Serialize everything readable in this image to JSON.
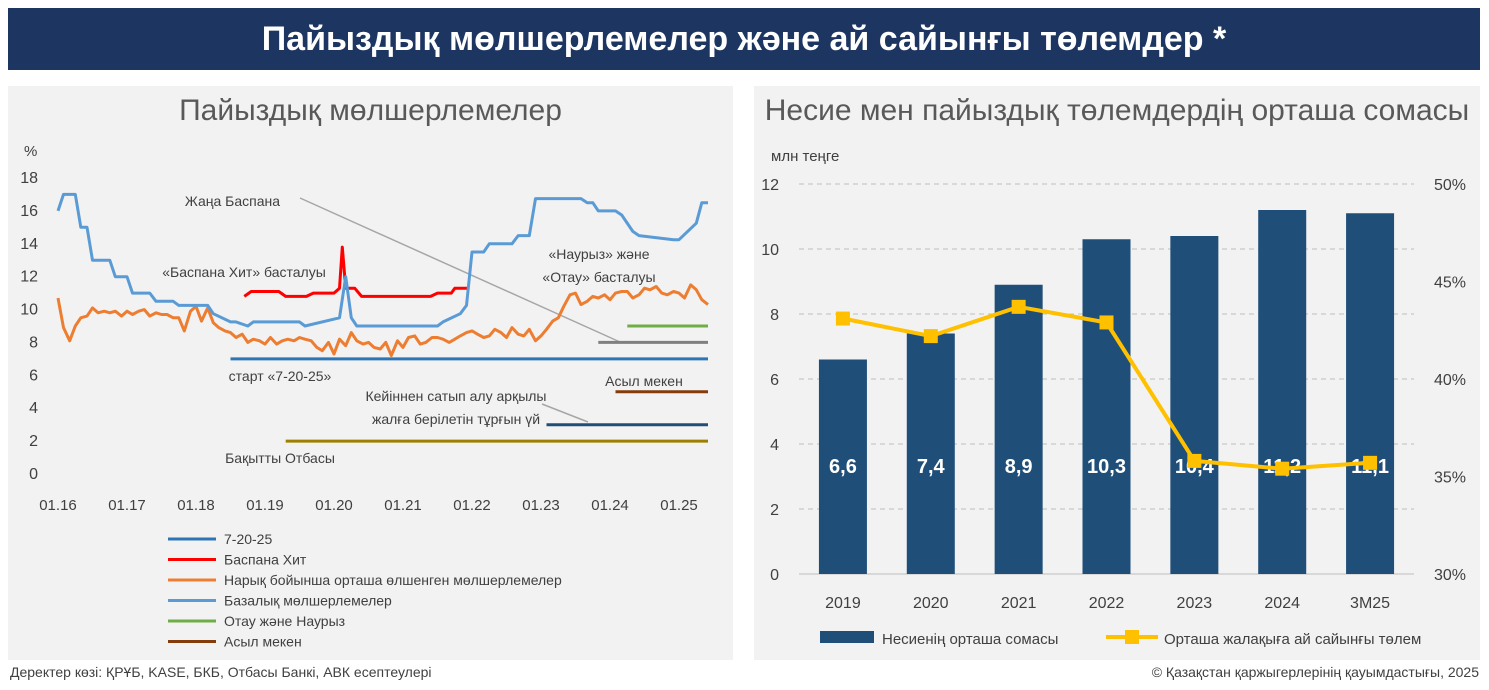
{
  "header": {
    "title": "Пайыздық мөлшерлемелер және ай сайынғы төлемдер *"
  },
  "left_panel": {
    "title": "Пайыздық мөлшерлемелер"
  },
  "right_panel": {
    "title": "Несие мен пайыздық төлемдердің орташа сомасы"
  },
  "footer": {
    "source": "Деректер көзі: ҚРҰБ, KASE, БКБ, Отбасы Банкі, АВК есептеулері",
    "copyright": "© Қазақстан қаржыгерлерінің қауымдастығы, 2025"
  },
  "chart_data": [
    {
      "type": "line",
      "title": "Пайыздық мөлшерлемелер",
      "ylabel": "%",
      "ylim": [
        0,
        18
      ],
      "yticks": [
        0,
        2,
        4,
        6,
        8,
        10,
        12,
        14,
        16,
        18
      ],
      "xlim": [
        2016.0,
        2025.42
      ],
      "xticks": [
        "01.16",
        "01.17",
        "01.18",
        "01.19",
        "01.20",
        "01.21",
        "01.22",
        "01.23",
        "01.24",
        "01.25"
      ],
      "grid": false,
      "legend_position": "bottom",
      "series": [
        {
          "name": "7-20-25",
          "color": "#2e75b6",
          "x": [
            2018.5,
            2025.42
          ],
          "y": [
            7,
            7
          ]
        },
        {
          "name": "Баспана Хит",
          "color": "#ff0000",
          "x": [
            2018.7,
            2018.8,
            2019.2,
            2019.3,
            2019.6,
            2019.7,
            2019.9,
            2020.0,
            2020.08,
            2020.12,
            2020.17,
            2020.3,
            2020.4,
            2020.6,
            2020.8,
            2021.0,
            2021.4,
            2021.5,
            2021.7,
            2021.75,
            2021.95
          ],
          "y": [
            10.8,
            11.1,
            11.1,
            10.8,
            10.8,
            11.0,
            11.0,
            11.0,
            11.3,
            13.8,
            11.3,
            11.3,
            10.8,
            10.8,
            10.8,
            10.8,
            10.8,
            11.0,
            11.0,
            11.3,
            11.3
          ]
        },
        {
          "name": "Нарық бойынша орташа өлшенген мөлшерлемелер",
          "color": "#ed7d31",
          "x": [
            2016.0,
            2016.08,
            2016.17,
            2016.25,
            2016.33,
            2016.42,
            2016.5,
            2016.58,
            2016.67,
            2016.75,
            2016.83,
            2016.92,
            2017.0,
            2017.08,
            2017.17,
            2017.25,
            2017.33,
            2017.42,
            2017.5,
            2017.58,
            2017.67,
            2017.75,
            2017.83,
            2017.92,
            2018.0,
            2018.08,
            2018.17,
            2018.25,
            2018.33,
            2018.42,
            2018.5,
            2018.58,
            2018.67,
            2018.75,
            2018.83,
            2018.92,
            2019.0,
            2019.08,
            2019.17,
            2019.25,
            2019.33,
            2019.42,
            2019.5,
            2019.58,
            2019.67,
            2019.75,
            2019.83,
            2019.92,
            2020.0,
            2020.08,
            2020.17,
            2020.25,
            2020.33,
            2020.42,
            2020.5,
            2020.58,
            2020.67,
            2020.75,
            2020.83,
            2020.92,
            2021.0,
            2021.08,
            2021.17,
            2021.25,
            2021.33,
            2021.42,
            2021.5,
            2021.58,
            2021.67,
            2021.75,
            2021.83,
            2021.92,
            2022.0,
            2022.08,
            2022.17,
            2022.25,
            2022.33,
            2022.42,
            2022.5,
            2022.58,
            2022.67,
            2022.75,
            2022.83,
            2022.92,
            2023.0,
            2023.08,
            2023.17,
            2023.25,
            2023.33,
            2023.42,
            2023.5,
            2023.58,
            2023.67,
            2023.75,
            2023.83,
            2023.92,
            2024.0,
            2024.08,
            2024.17,
            2024.25,
            2024.33,
            2024.42,
            2024.5,
            2024.58,
            2024.67,
            2024.75,
            2024.83,
            2024.92,
            2025.0,
            2025.08,
            2025.17,
            2025.25,
            2025.33,
            2025.42
          ],
          "y": [
            10.7,
            8.9,
            8.1,
            9.0,
            9.5,
            9.6,
            10.1,
            9.8,
            9.9,
            9.8,
            9.9,
            9.6,
            9.9,
            9.7,
            9.9,
            10.0,
            9.6,
            9.8,
            9.7,
            9.7,
            9.5,
            9.5,
            8.7,
            9.9,
            10.2,
            9.3,
            10.1,
            9.2,
            8.9,
            8.7,
            8.6,
            8.3,
            8.5,
            8.0,
            8.2,
            8.1,
            7.9,
            8.3,
            7.9,
            8.1,
            8.2,
            8.1,
            8.3,
            8.2,
            8.1,
            7.7,
            7.5,
            8.0,
            7.3,
            8.2,
            7.8,
            8.6,
            8.1,
            7.9,
            8.0,
            7.7,
            7.6,
            8.0,
            7.2,
            8.1,
            7.7,
            8.3,
            8.4,
            7.9,
            8.0,
            8.3,
            8.3,
            8.2,
            8.0,
            8.2,
            8.4,
            8.6,
            8.7,
            8.5,
            8.3,
            8.4,
            8.8,
            8.6,
            8.3,
            8.9,
            8.5,
            8.4,
            8.8,
            8.1,
            8.4,
            8.8,
            9.3,
            9.5,
            10.2,
            10.9,
            11.0,
            10.3,
            10.5,
            10.8,
            10.7,
            10.9,
            10.6,
            11.0,
            11.1,
            11.1,
            10.7,
            10.9,
            11.3,
            11.2,
            11.4,
            11.0,
            10.9,
            11.1,
            11.0,
            10.7,
            11.5,
            11.2,
            10.6,
            10.3
          ]
        },
        {
          "name": "Базалық мөлшерлемелер",
          "color": "#5b9bd5",
          "x": [
            2016.0,
            2016.08,
            2016.25,
            2016.33,
            2016.42,
            2016.5,
            2016.75,
            2016.83,
            2017.0,
            2017.08,
            2017.33,
            2017.42,
            2017.67,
            2017.75,
            2018.17,
            2018.25,
            2018.5,
            2018.58,
            2018.75,
            2018.83,
            2019.5,
            2019.58,
            2020.08,
            2020.17,
            2020.25,
            2020.33,
            2020.58,
            2020.67,
            2021.5,
            2021.58,
            2021.83,
            2021.92,
            2022.0,
            2022.08,
            2022.17,
            2022.25,
            2022.58,
            2022.67,
            2022.83,
            2022.92,
            2023.58,
            2023.67,
            2023.75,
            2023.83,
            2024.08,
            2024.17,
            2024.33,
            2024.42,
            2024.92,
            2025.0,
            2025.25,
            2025.33,
            2025.42
          ],
          "y": [
            16.0,
            17.0,
            17.0,
            15.0,
            15.0,
            13.0,
            13.0,
            12.0,
            12.0,
            11.0,
            11.0,
            10.5,
            10.5,
            10.25,
            10.25,
            9.75,
            9.25,
            9.25,
            9.0,
            9.25,
            9.25,
            9.0,
            9.5,
            12.0,
            9.5,
            9.0,
            9.0,
            9.0,
            9.0,
            9.25,
            9.75,
            10.25,
            13.5,
            13.5,
            13.5,
            14.0,
            14.0,
            14.5,
            14.5,
            16.75,
            16.75,
            16.5,
            16.5,
            16.0,
            16.0,
            15.75,
            14.75,
            14.5,
            14.25,
            14.25,
            15.25,
            16.5,
            16.5
          ]
        },
        {
          "name": "Отау және Наурыз",
          "color": "#70ad47",
          "x": [
            2024.25,
            2025.42
          ],
          "y": [
            9,
            9
          ]
        },
        {
          "name": "Асыл мекен",
          "color": "#843c0c",
          "x": [
            2024.08,
            2025.42
          ],
          "y": [
            5,
            5
          ]
        },
        {
          "name": "",
          "color": "#7f7f7f",
          "x": [
            2023.83,
            2025.42
          ],
          "y": [
            8,
            8
          ]
        },
        {
          "name": "",
          "color": "#1f4e79",
          "x": [
            2023.08,
            2025.42
          ],
          "y": [
            3,
            3
          ]
        },
        {
          "name": "",
          "color": "#9c8100",
          "x": [
            2019.3,
            2025.42
          ],
          "y": [
            2,
            2
          ]
        }
      ],
      "annotations": [
        {
          "id": "zhana",
          "lines": [
            "Жаңа Баспана"
          ]
        },
        {
          "id": "hit",
          "lines": [
            "«Баспана Хит» басталуы"
          ]
        },
        {
          "id": "nauryz",
          "lines": [
            "«Наурыз» және",
            "«Отау» басталуы"
          ]
        },
        {
          "id": "start",
          "lines": [
            "старт «7-20-25»"
          ]
        },
        {
          "id": "asyl",
          "lines": [
            "Асыл мекен"
          ]
        },
        {
          "id": "kejinen",
          "lines": [
            "Кейіннен сатып алу арқылы",
            "жалға берілетін тұрғын үй"
          ]
        },
        {
          "id": "bakytty",
          "lines": [
            "Бақытты Отбасы"
          ]
        }
      ]
    },
    {
      "type": "bar",
      "title": "Несие мен пайыздық төлемдердің орташа сомасы",
      "ylabel": "млн теңге",
      "categories": [
        "2019",
        "2020",
        "2021",
        "2022",
        "2023",
        "2024",
        "3М25"
      ],
      "ylim": [
        0,
        12
      ],
      "yticks": [
        0,
        2,
        4,
        6,
        8,
        10,
        12
      ],
      "y2lim": [
        30,
        50
      ],
      "y2ticks": [
        "30%",
        "35%",
        "40%",
        "45%",
        "50%"
      ],
      "grid": true,
      "legend_position": "bottom",
      "series": [
        {
          "name": "Несиенің орташа сомасы",
          "type": "bar",
          "color": "#1f4e79",
          "values": [
            6.6,
            7.4,
            8.9,
            10.3,
            10.4,
            11.2,
            11.1
          ],
          "labels": [
            "6,6",
            "7,4",
            "8,9",
            "10,3",
            "10,4",
            "11,2",
            "11,1"
          ]
        },
        {
          "name": "Орташа жалақыға ай сайынғы төлем",
          "type": "line",
          "axis": "secondary",
          "color": "#ffc000",
          "values": [
            43.1,
            42.2,
            43.7,
            42.9,
            35.8,
            35.4,
            35.7
          ]
        }
      ]
    }
  ]
}
